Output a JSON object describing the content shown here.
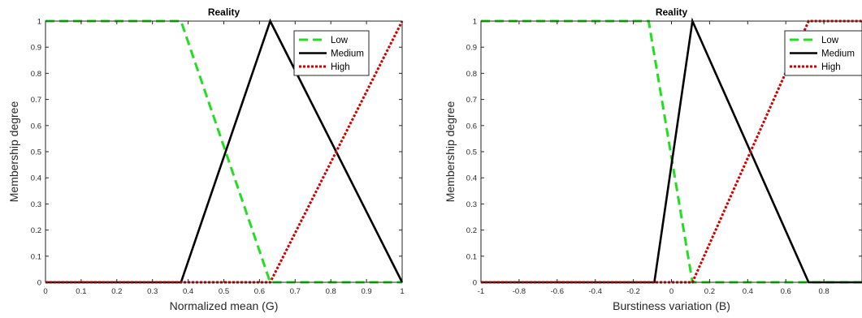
{
  "chart_data": [
    {
      "type": "line",
      "title": "Reality",
      "xlabel": "Normalized mean (G)",
      "ylabel": "Membership degree",
      "xlim": [
        0,
        1
      ],
      "ylim": [
        0,
        1
      ],
      "xticks": [
        0,
        0.1,
        0.2,
        0.3,
        0.4,
        0.5,
        0.6,
        0.7,
        0.8,
        0.9,
        1
      ],
      "xtick_labels": [
        "0",
        "0.1",
        "0.2",
        "0.3",
        "0.4",
        "0.5",
        "0.6",
        "0.7",
        "0.8",
        "0.9",
        "1"
      ],
      "yticks": [
        0,
        0.1,
        0.2,
        0.3,
        0.4,
        0.5,
        0.6,
        0.7,
        0.8,
        0.9,
        1
      ],
      "ytick_labels": [
        "0",
        "0.1",
        "0.2",
        "0.3",
        "0.4",
        "0.5",
        "0.6",
        "0.7",
        "0.8",
        "0.9",
        "1"
      ],
      "grid": false,
      "legend_position": "top-right",
      "series": [
        {
          "name": "Low",
          "color": "#22dd22",
          "style": "dashed",
          "x": [
            0,
            0.38,
            0.63,
            1
          ],
          "y": [
            1,
            1,
            0,
            0
          ]
        },
        {
          "name": "Medium",
          "color": "#000000",
          "style": "solid",
          "x": [
            0,
            0.38,
            0.63,
            1
          ],
          "y": [
            0,
            0,
            1,
            0
          ]
        },
        {
          "name": "High",
          "color": "#cc0000",
          "style": "dotted",
          "x": [
            0,
            0.63,
            1
          ],
          "y": [
            0,
            0,
            1
          ]
        }
      ]
    },
    {
      "type": "line",
      "title": "Reality",
      "xlabel": "Burstiness variation (B)",
      "ylabel": "Membership degree",
      "xlim": [
        -1,
        1
      ],
      "ylim": [
        0,
        1
      ],
      "xticks": [
        -1,
        -0.8,
        -0.6,
        -0.4,
        -0.2,
        0,
        0.2,
        0.4,
        0.6,
        0.8
      ],
      "xtick_labels": [
        "-1",
        "-0.8",
        "-0.6",
        "-0.4",
        "-0.2",
        "0",
        "0.2",
        "0.4",
        "0.6",
        "0.8"
      ],
      "yticks": [
        0,
        0.1,
        0.2,
        0.3,
        0.4,
        0.5,
        0.6,
        0.7,
        0.8,
        0.9,
        1
      ],
      "ytick_labels": [
        "0",
        "0.1",
        "0.2",
        "0.3",
        "0.4",
        "0.5",
        "0.6",
        "0.7",
        "0.8",
        "0.9",
        "1"
      ],
      "grid": false,
      "legend_position": "top-right",
      "series": [
        {
          "name": "Low",
          "color": "#22dd22",
          "style": "dashed",
          "x": [
            -1,
            -0.12,
            0.11,
            1
          ],
          "y": [
            1,
            1,
            0,
            0
          ]
        },
        {
          "name": "Medium",
          "color": "#000000",
          "style": "solid",
          "x": [
            -1,
            -0.09,
            0.11,
            0.72,
            1
          ],
          "y": [
            0,
            0,
            1,
            0,
            0
          ]
        },
        {
          "name": "High",
          "color": "#cc0000",
          "style": "dotted",
          "x": [
            -1,
            0.11,
            0.72,
            1
          ],
          "y": [
            0,
            0,
            1,
            1
          ]
        }
      ]
    }
  ]
}
